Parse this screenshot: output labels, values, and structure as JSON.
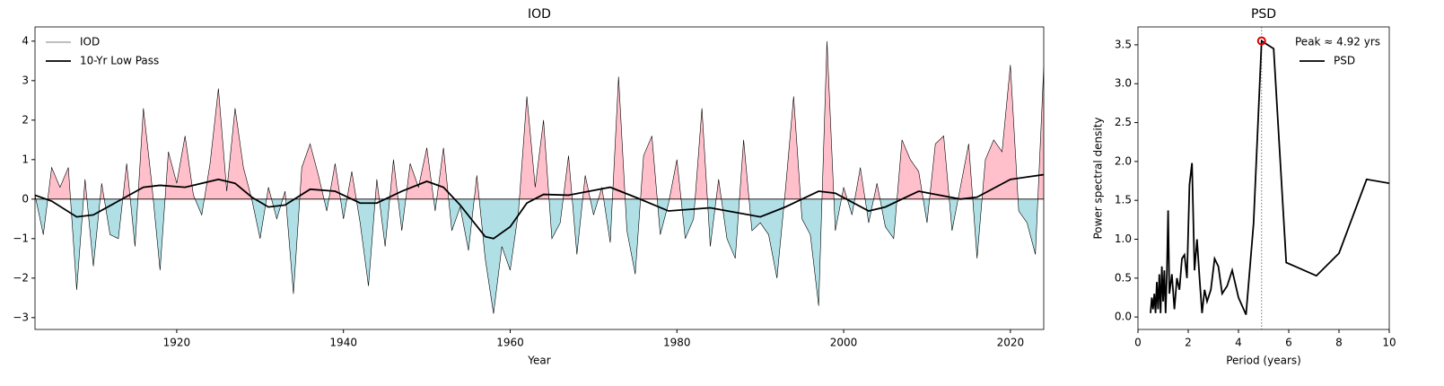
{
  "chart_data": [
    {
      "type": "line",
      "title": "IOD",
      "x_label": "Year",
      "xlim": [
        1903,
        2024
      ],
      "ylim": [
        -3.3,
        4.36
      ],
      "xticks": [
        1920,
        1940,
        1960,
        1980,
        2000,
        2020
      ],
      "yticks": [
        {
          "value": -3,
          "label": "−3"
        },
        {
          "value": -2,
          "label": "−2"
        },
        {
          "value": -1,
          "label": "−1"
        },
        0,
        1,
        2,
        3,
        4
      ],
      "legend": "upper left",
      "fill_above": "#ffc0cb",
      "fill_below": "#b0e0e6",
      "series": [
        {
          "name": "IOD",
          "color": "#000000",
          "width": 0.6,
          "x": [
            1903,
            1904,
            1905,
            1906,
            1907,
            1908,
            1909,
            1910,
            1911,
            1912,
            1913,
            1914,
            1915,
            1916,
            1917,
            1918,
            1919,
            1920,
            1921,
            1922,
            1923,
            1924,
            1925,
            1926,
            1927,
            1928,
            1929,
            1930,
            1931,
            1932,
            1933,
            1934,
            1935,
            1936,
            1937,
            1938,
            1939,
            1940,
            1941,
            1942,
            1943,
            1944,
            1945,
            1946,
            1947,
            1948,
            1949,
            1950,
            1951,
            1952,
            1953,
            1954,
            1955,
            1956,
            1957,
            1958,
            1959,
            1960,
            1961,
            1962,
            1963,
            1964,
            1965,
            1966,
            1967,
            1968,
            1969,
            1970,
            1971,
            1972,
            1973,
            1974,
            1975,
            1976,
            1977,
            1978,
            1979,
            1980,
            1981,
            1982,
            1983,
            1984,
            1985,
            1986,
            1987,
            1988,
            1989,
            1990,
            1991,
            1992,
            1993,
            1994,
            1995,
            1996,
            1997,
            1998,
            1999,
            2000,
            2001,
            2002,
            2003,
            2004,
            2005,
            2006,
            2007,
            2008,
            2009,
            2010,
            2011,
            2012,
            2013,
            2014,
            2015,
            2016,
            2017,
            2018,
            2019,
            2020,
            2021,
            2022,
            2023,
            2024
          ],
          "values": [
            0.1,
            -0.9,
            0.8,
            0.3,
            0.8,
            -2.3,
            0.5,
            -1.7,
            0.4,
            -0.9,
            -1.0,
            0.9,
            -1.2,
            2.3,
            0.4,
            -1.8,
            1.2,
            0.4,
            1.6,
            0.1,
            -0.4,
            0.9,
            2.8,
            0.2,
            2.3,
            0.8,
            0.0,
            -1.0,
            0.3,
            -0.5,
            0.2,
            -2.4,
            0.8,
            1.4,
            0.6,
            -0.3,
            0.9,
            -0.5,
            0.7,
            -0.6,
            -2.2,
            0.5,
            -1.2,
            1.0,
            -0.8,
            0.9,
            0.3,
            1.3,
            -0.3,
            1.3,
            -0.8,
            -0.2,
            -1.3,
            0.6,
            -1.5,
            -2.9,
            -1.2,
            -1.8,
            -0.3,
            2.6,
            0.3,
            2.0,
            -1.0,
            -0.6,
            1.1,
            -1.4,
            0.6,
            -0.4,
            0.3,
            -1.1,
            3.1,
            -0.8,
            -1.9,
            1.1,
            1.6,
            -0.9,
            -0.1,
            1.0,
            -1.0,
            -0.5,
            2.3,
            -1.2,
            0.5,
            -1.0,
            -1.5,
            1.5,
            -0.8,
            -0.6,
            -0.9,
            -2.0,
            0.2,
            2.6,
            -0.5,
            -0.9,
            -2.7,
            4.0,
            -0.8,
            0.3,
            -0.4,
            0.8,
            -0.6,
            0.4,
            -0.7,
            -1.0,
            1.5,
            1.0,
            0.7,
            -0.6,
            1.4,
            1.6,
            -0.8,
            0.3,
            1.4,
            -1.5,
            1.0,
            1.5,
            1.2,
            3.4,
            -0.3,
            -0.6,
            -1.4,
            3.35
          ]
        },
        {
          "name": "10-Yr Low Pass",
          "color": "#000000",
          "width": 1.8,
          "x": [
            1903,
            1905,
            1908,
            1910,
            1913,
            1916,
            1918,
            1921,
            1925,
            1927,
            1929,
            1931,
            1933,
            1936,
            1939,
            1942,
            1944,
            1947,
            1950,
            1952,
            1954,
            1957,
            1958,
            1960,
            1962,
            1964,
            1967,
            1972,
            1975,
            1979,
            1984,
            1990,
            1993,
            1997,
            1999,
            2003,
            2005,
            2009,
            2014,
            2016,
            2020,
            2024
          ],
          "values": [
            0.1,
            -0.05,
            -0.45,
            -0.4,
            -0.05,
            0.3,
            0.35,
            0.3,
            0.5,
            0.4,
            0.05,
            -0.2,
            -0.15,
            0.25,
            0.2,
            -0.1,
            -0.1,
            0.2,
            0.45,
            0.3,
            -0.15,
            -0.95,
            -1.0,
            -0.7,
            -0.1,
            0.12,
            0.1,
            0.3,
            0.05,
            -0.3,
            -0.22,
            -0.45,
            -0.2,
            0.2,
            0.15,
            -0.3,
            -0.2,
            0.2,
            0.0,
            0.05,
            0.5,
            0.62
          ]
        }
      ]
    },
    {
      "type": "line",
      "title": "PSD",
      "x_label": "Period (years)",
      "y_label": "Power spectral density",
      "xlim": [
        0,
        10
      ],
      "ylim": [
        -0.16,
        3.73
      ],
      "xticks": [
        0,
        2,
        4,
        6,
        8,
        10
      ],
      "yticks": [
        {
          "value": 0,
          "label": "0.0"
        },
        {
          "value": 0.5,
          "label": "0.5"
        },
        {
          "value": 1,
          "label": "1.0"
        },
        {
          "value": 1.5,
          "label": "1.5"
        },
        {
          "value": 2,
          "label": "2.0"
        },
        {
          "value": 2.5,
          "label": "2.5"
        },
        {
          "value": 3,
          "label": "3.0"
        },
        {
          "value": 3.5,
          "label": "3.5"
        }
      ],
      "legend": "upper right",
      "peak": {
        "x": 4.92,
        "y": 3.55,
        "label": "Peak ≈ 4.92 yrs",
        "color": "#e00000"
      },
      "series": [
        {
          "name": "PSD",
          "color": "#000000",
          "width": 1.8,
          "x": [
            0.5,
            0.55,
            0.6,
            0.65,
            0.7,
            0.75,
            0.8,
            0.85,
            0.9,
            0.95,
            1.0,
            1.05,
            1.1,
            1.15,
            1.2,
            1.25,
            1.35,
            1.45,
            1.55,
            1.65,
            1.75,
            1.85,
            1.95,
            2.05,
            2.15,
            2.25,
            2.35,
            2.45,
            2.55,
            2.65,
            2.75,
            2.9,
            3.05,
            3.2,
            3.35,
            3.55,
            3.75,
            4.0,
            4.3,
            4.6,
            4.92,
            5.4,
            5.9,
            6.4,
            7.1,
            8.0,
            9.1,
            10.0
          ],
          "values": [
            0.05,
            0.25,
            0.1,
            0.3,
            0.05,
            0.45,
            0.1,
            0.55,
            0.05,
            0.65,
            0.2,
            0.6,
            0.05,
            0.55,
            1.37,
            0.3,
            0.55,
            0.1,
            0.5,
            0.35,
            0.75,
            0.8,
            0.5,
            1.7,
            1.98,
            0.6,
            1.0,
            0.5,
            0.05,
            0.35,
            0.2,
            0.35,
            0.75,
            0.65,
            0.3,
            0.4,
            0.6,
            0.25,
            0.03,
            1.2,
            3.55,
            3.45,
            0.7,
            0.63,
            0.53,
            0.82,
            1.77,
            1.72
          ]
        }
      ]
    }
  ]
}
